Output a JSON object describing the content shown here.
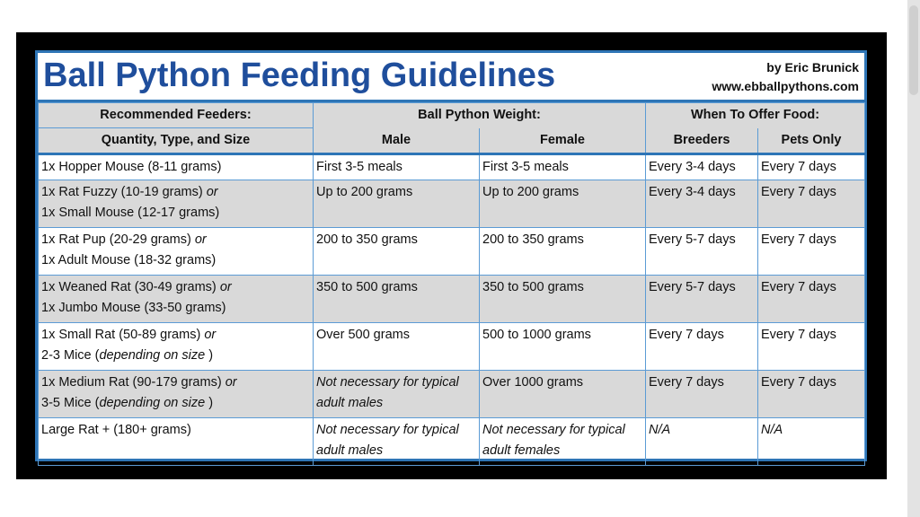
{
  "title": "Ball Python Feeding Guidelines",
  "credit": {
    "author": "by Eric Brunick",
    "website": "www.ebballpythons.com"
  },
  "headers": {
    "feeders_line1": "Recommended Feeders:",
    "feeders_line2": "Quantity, Type, and Size",
    "weight_group": "Ball Python Weight:",
    "male": "Male",
    "female": "Female",
    "offer_group": "When To Offer Food:",
    "breeders": "Breeders",
    "pets": "Pets Only"
  },
  "rows": [
    {
      "feeder": {
        "a": "1x Hopper Mouse (8-11 grams)",
        "or": "",
        "b": "",
        "b_italic": "",
        "b_end": ""
      },
      "male": "First 3-5 meals",
      "male_italic": "",
      "female": "First 3-5 meals",
      "female_italic": "",
      "breeders": "Every 3-4 days",
      "breeders_italic": "",
      "pets": "Every 7 days",
      "pets_italic": ""
    },
    {
      "feeder": {
        "a": "1x Rat Fuzzy (10-19 grams)",
        "or": "or",
        "b": "1x Small Mouse (12-17 grams)",
        "b_italic": "",
        "b_end": ""
      },
      "male": "Up to 200 grams",
      "male_italic": "",
      "female": "Up to 200 grams",
      "female_italic": "",
      "breeders": "Every 3-4 days",
      "breeders_italic": "",
      "pets": "Every 7 days",
      "pets_italic": ""
    },
    {
      "feeder": {
        "a": "1x Rat Pup (20-29 grams)",
        "or": "or",
        "b": "1x Adult Mouse (18-32 grams)",
        "b_italic": "",
        "b_end": ""
      },
      "male": "200 to 350 grams",
      "male_italic": "",
      "female": "200 to 350 grams",
      "female_italic": "",
      "breeders": "Every 5-7 days",
      "breeders_italic": "",
      "pets": "Every 7 days",
      "pets_italic": ""
    },
    {
      "feeder": {
        "a": "1x Weaned Rat (30-49 grams)",
        "or": "or",
        "b": "1x Jumbo Mouse (33-50 grams)",
        "b_italic": "",
        "b_end": ""
      },
      "male": "350 to 500 grams",
      "male_italic": "",
      "female": "350 to 500 grams",
      "female_italic": "",
      "breeders": "Every 5-7 days",
      "breeders_italic": "",
      "pets": "Every 7 days",
      "pets_italic": ""
    },
    {
      "feeder": {
        "a": "1x Small Rat (50-89 grams)",
        "or": "or",
        "b": "2-3 Mice (",
        "b_italic": "depending on size",
        "b_end": " )"
      },
      "male": "Over 500 grams",
      "male_italic": "",
      "female": "500 to 1000 grams",
      "female_italic": "",
      "breeders": "Every 7 days",
      "breeders_italic": "",
      "pets": "Every 7 days",
      "pets_italic": ""
    },
    {
      "feeder": {
        "a": "1x Medium Rat (90-179 grams)",
        "or": "or",
        "b": "3-5 Mice (",
        "b_italic": "depending on size",
        "b_end": " )"
      },
      "male": "",
      "male_italic": "Not necessary for typical adult males",
      "female": "Over 1000 grams",
      "female_italic": "",
      "breeders": "Every 7 days",
      "breeders_italic": "",
      "pets": "Every 7 days",
      "pets_italic": ""
    },
    {
      "feeder": {
        "a": "Large Rat + (180+ grams)",
        "or": "",
        "b": "",
        "b_italic": "",
        "b_end": ""
      },
      "male": "",
      "male_italic": "Not necessary for typical adult males",
      "female": "",
      "female_italic": "Not necessary for typical adult females",
      "breeders": "",
      "breeders_italic": "N/A",
      "pets": "",
      "pets_italic": "N/A"
    }
  ],
  "colors": {
    "frame": "#000000",
    "border": "#2e75b6",
    "grid": "#5b9bd5",
    "title": "#1f4e9c",
    "shade": "#d9d9d9"
  }
}
